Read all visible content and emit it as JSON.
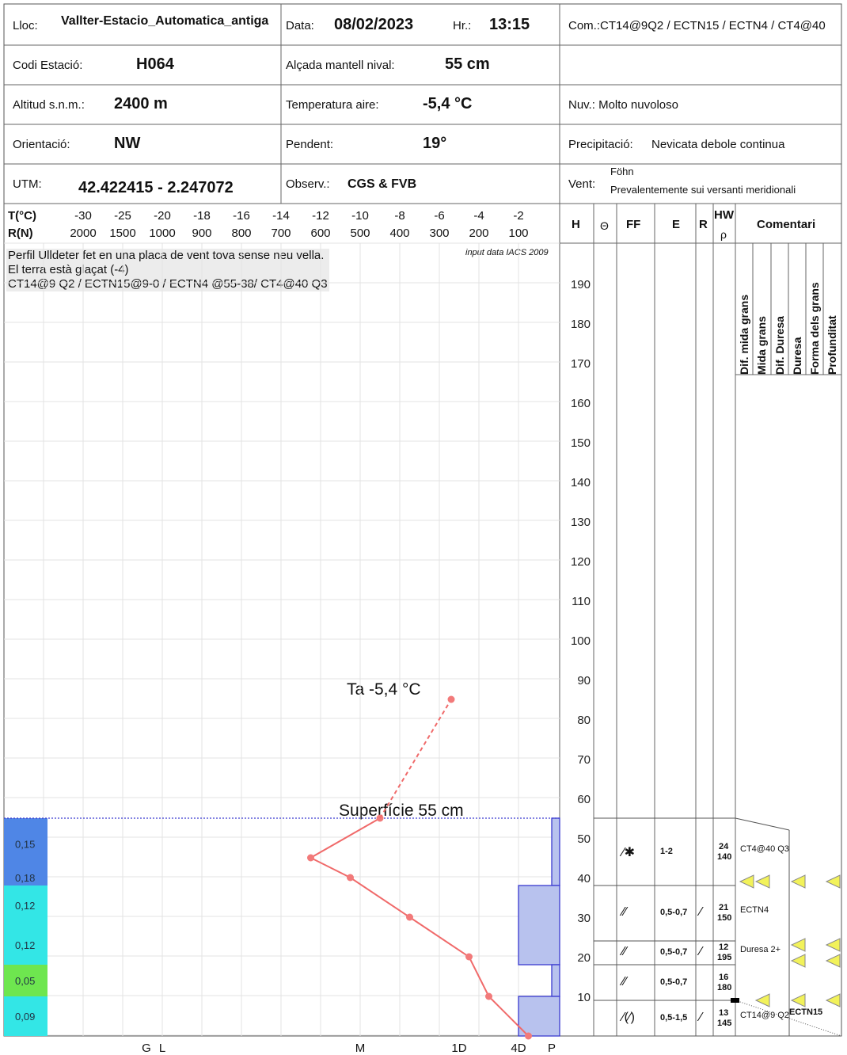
{
  "header": {
    "lloc_label": "Lloc:",
    "lloc": "Vallter-Estacio_Automatica_antiga",
    "data_label": "Data:",
    "data": "08/02/2023",
    "hr_label": "Hr.:",
    "hr": "13:15",
    "com_label": "Com.:",
    "com": "CT14@9Q2 / ECTN15 / ECTN4 / CT4@40",
    "codi_label": "Codi Estació:",
    "codi": "H064",
    "alcada_label": "Alçada mantell nival:",
    "alcada": "55 cm",
    "altitud_label": "Altitud s.n.m.:",
    "altitud": "2400 m",
    "temp_label": "Temperatura aire:",
    "temp": "-5,4 °C",
    "nuv_label": "Nuv.:",
    "nuv": "Molto nuvoloso",
    "orient_label": "Orientació:",
    "orient": "NW",
    "pendent_label": "Pendent:",
    "pendent": "19°",
    "precip_label": "Precipitació:",
    "precip": "Nevicata debole continua",
    "utm_label": "UTM:",
    "utm": "42.422415 - 2.247072",
    "observ_label": "Observ.:",
    "observ": "CGS & FVB",
    "vent_label": "Vent:",
    "vent_top": "Föhn",
    "vent": "Prevalentemente sui versanti meridionali"
  },
  "axis_labels": {
    "t_label": "T(°C)",
    "r_label": "R(N)",
    "t_ticks": [
      "-30",
      "-25",
      "-20",
      "-18",
      "-16",
      "-14",
      "-12",
      "-10",
      "-8",
      "-6",
      "-4",
      "-2"
    ],
    "r_ticks": [
      "2000",
      "1500",
      "1000",
      "900",
      "800",
      "700",
      "600",
      "500",
      "400",
      "300",
      "200",
      "100"
    ],
    "hardness_labels": [
      "G",
      "L",
      "M",
      "1D",
      "4D",
      "P"
    ]
  },
  "notes": {
    "lines": [
      "Perfil Ulldeter fet en una placa de vent tova sense neu vella.",
      "El terra està glaçat (-4)",
      "CT14@9 Q2 / ECTN15@9-0 / ECTN4 @55-38/ CT4@40 Q3"
    ],
    "input_data": "input data IACS 2009"
  },
  "chart_data": {
    "type": "line",
    "title": "",
    "air_temp_label": "Ta  -5,4 °C",
    "surface_label": "Superfície  55 cm",
    "height_ticks": [
      10,
      20,
      30,
      40,
      50,
      60,
      70,
      80,
      90,
      100,
      110,
      120,
      130,
      140,
      150,
      160,
      170,
      180,
      190
    ],
    "height_range": [
      0,
      200
    ],
    "air_temp": {
      "t": -5.4,
      "h": 85
    },
    "snow_surface": 55,
    "temperature_profile": [
      {
        "t": -9.0,
        "h": 55
      },
      {
        "t": -12.5,
        "h": 45
      },
      {
        "t": -10.5,
        "h": 40
      },
      {
        "t": -7.5,
        "h": 30
      },
      {
        "t": -4.5,
        "h": 20
      },
      {
        "t": -3.5,
        "h": 10
      },
      {
        "t": -1.5,
        "h": 0
      }
    ],
    "hardness_profile": [
      {
        "from": 38,
        "to": 55,
        "hardness": "P"
      },
      {
        "from": 18,
        "to": 38,
        "hardness": "4D"
      },
      {
        "from": 10,
        "to": 18,
        "hardness": "P"
      },
      {
        "from": 0,
        "to": 10,
        "hardness": "4D"
      }
    ],
    "density_bars": [
      {
        "from": 42,
        "to": 55,
        "value": "0,15",
        "color": "#4f86e6"
      },
      {
        "from": 38,
        "to": 42,
        "value": "0,18",
        "color": "#4f86e6"
      },
      {
        "from": 28,
        "to": 38,
        "value": "0,12",
        "color": "#33e6e6"
      },
      {
        "from": 18,
        "to": 28,
        "value": "0,12",
        "color": "#33e6e6"
      },
      {
        "from": 10,
        "to": 18,
        "value": "0,05",
        "color": "#6ee64f"
      },
      {
        "from": 0,
        "to": 10,
        "value": "0,09",
        "color": "#33e6e6"
      }
    ]
  },
  "table": {
    "headers": {
      "h": "H",
      "theta": "Θ",
      "ff": "FF",
      "e": "E",
      "r": "R",
      "hw": "HW",
      "rho": "ρ",
      "comentari": "Comentari"
    },
    "comment_columns": [
      "Dif. mida grans",
      "Mida grans",
      "Dif. Duresa",
      "Duresa",
      "Forma dels grans",
      "Profunditat"
    ],
    "layers": [
      {
        "ff": "⁄✱",
        "e": "1-2",
        "r": "",
        "hw": "24",
        "rho": "140",
        "comment": "CT4@40 Q3"
      },
      {
        "ff": "⁄⁄",
        "e": "0,5-0,7",
        "r": "⁄",
        "hw": "21",
        "rho": "150",
        "comment": "ECTN4"
      },
      {
        "ff": "⁄⁄",
        "e": "0,5-0,7",
        "r": "⁄",
        "hw": "12",
        "rho": "195",
        "comment": "Duresa 2+"
      },
      {
        "ff": "⁄⁄",
        "e": "0,5-0,7",
        "r": "",
        "hw": "16",
        "rho": "180",
        "comment": ""
      },
      {
        "ff": "⁄(⁄)",
        "e": "0,5-1,5",
        "r": "⁄",
        "hw": "13",
        "rho": "145",
        "comment": "CT14@9 Q2"
      }
    ],
    "comment_extra": "ECTN15"
  }
}
